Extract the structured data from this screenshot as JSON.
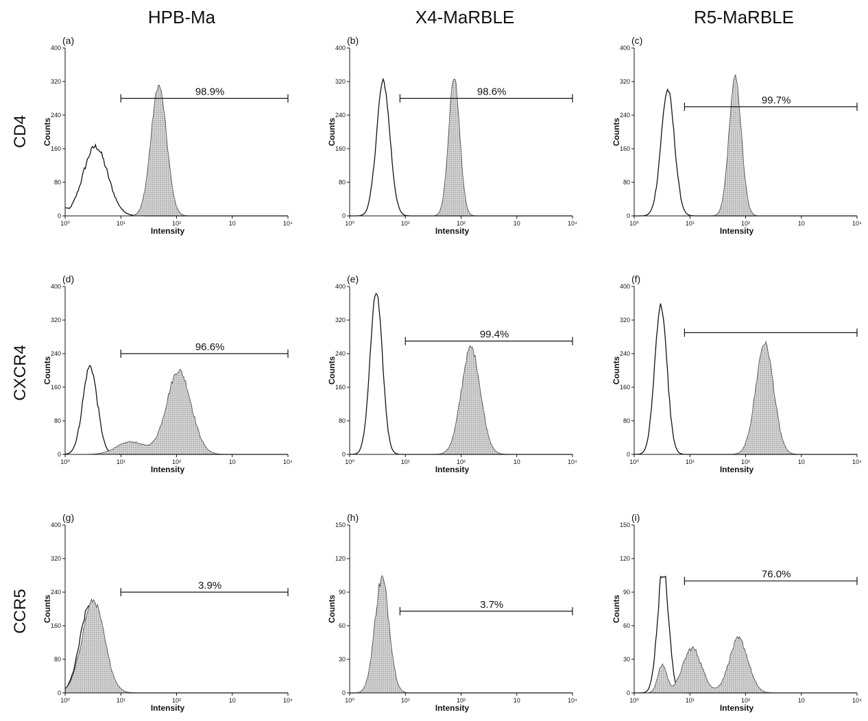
{
  "column_headers": [
    "HPB-Ma",
    "X4-MaRBLE",
    "R5-MaRBLE"
  ],
  "row_headers": [
    "CD4",
    "CXCR4",
    "CCR5"
  ],
  "chart_data": [
    {
      "type": "area",
      "panel": "(a)",
      "xlabel": "Intensity",
      "ylabel": "Counts",
      "xscale": "log",
      "xlim": [
        1,
        10000
      ],
      "x_ticks": [
        "10⁰",
        "10¹",
        "10²",
        "10",
        "10⁴"
      ],
      "y_ticks": [
        "0",
        "80",
        "160",
        "240",
        "320",
        "400"
      ],
      "ylim": [
        0,
        400
      ],
      "gate": {
        "from": 10,
        "to": 10000,
        "label": "98.9%",
        "y": 280
      },
      "series": [
        {
          "style": "outline",
          "peaks": [
            {
              "center": 3.5,
              "height": 165,
              "width": 0.22
            }
          ],
          "floor": 20
        },
        {
          "style": "filled",
          "peaks": [
            {
              "center": 48,
              "height": 310,
              "width": 0.14
            }
          ],
          "floor": 0
        }
      ]
    },
    {
      "type": "area",
      "panel": "(b)",
      "xlabel": "Intensity",
      "ylabel": "Counts",
      "xscale": "log",
      "xlim": [
        1,
        10000
      ],
      "x_ticks": [
        "10⁰",
        "10¹",
        "10²",
        "10",
        "10⁴"
      ],
      "y_ticks": [
        "0",
        "80",
        "160",
        "240",
        "320",
        "400"
      ],
      "ylim": [
        0,
        400
      ],
      "gate": {
        "from": 8,
        "to": 10000,
        "label": "98.6%",
        "y": 280
      },
      "series": [
        {
          "style": "outline",
          "peaks": [
            {
              "center": 4,
              "height": 320,
              "width": 0.12
            }
          ],
          "floor": 0
        },
        {
          "style": "filled",
          "peaks": [
            {
              "center": 75,
              "height": 330,
              "width": 0.1
            }
          ],
          "floor": 0
        }
      ]
    },
    {
      "type": "area",
      "panel": "(c)",
      "xlabel": "Intensity",
      "ylabel": "Counts",
      "xscale": "log",
      "xlim": [
        1,
        10000
      ],
      "x_ticks": [
        "10⁰",
        "10¹",
        "10²",
        "10",
        "10⁴"
      ],
      "y_ticks": [
        "0",
        "80",
        "160",
        "240",
        "320",
        "400"
      ],
      "ylim": [
        0,
        400
      ],
      "gate": {
        "from": 8,
        "to": 10000,
        "label": "99.7%",
        "y": 260
      },
      "series": [
        {
          "style": "outline",
          "peaks": [
            {
              "center": 4,
              "height": 300,
              "width": 0.12
            }
          ],
          "floor": 0
        },
        {
          "style": "filled",
          "peaks": [
            {
              "center": 65,
              "height": 330,
              "width": 0.11
            }
          ],
          "floor": 0
        }
      ]
    },
    {
      "type": "area",
      "panel": "(d)",
      "xlabel": "Intensity",
      "ylabel": "Counts",
      "xscale": "log",
      "xlim": [
        1,
        10000
      ],
      "x_ticks": [
        "10⁰",
        "10¹",
        "10²",
        "10",
        "10⁴"
      ],
      "y_ticks": [
        "0",
        "80",
        "160",
        "240",
        "320",
        "400"
      ],
      "ylim": [
        0,
        400
      ],
      "gate": {
        "from": 10,
        "to": 10000,
        "label": "96.6%",
        "y": 240
      },
      "series": [
        {
          "style": "outline",
          "peaks": [
            {
              "center": 2.8,
              "height": 210,
              "width": 0.13
            }
          ],
          "floor": 0
        },
        {
          "style": "filled",
          "peaks": [
            {
              "center": 110,
              "height": 200,
              "width": 0.22
            },
            {
              "center": 15,
              "height": 30,
              "width": 0.25
            }
          ],
          "floor": 0
        }
      ]
    },
    {
      "type": "area",
      "panel": "(e)",
      "xlabel": "Intensity",
      "ylabel": "Counts",
      "xscale": "log",
      "xlim": [
        1,
        10000
      ],
      "x_ticks": [
        "10⁰",
        "10¹",
        "10²",
        "10",
        "10⁴"
      ],
      "y_ticks": [
        "0",
        "80",
        "160",
        "240",
        "320",
        "400"
      ],
      "ylim": [
        0,
        400
      ],
      "gate": {
        "from": 10,
        "to": 10000,
        "label": "99.4%",
        "y": 270
      },
      "series": [
        {
          "style": "outline",
          "peaks": [
            {
              "center": 3,
              "height": 385,
              "width": 0.11
            }
          ],
          "floor": 0
        },
        {
          "style": "filled",
          "peaks": [
            {
              "center": 150,
              "height": 255,
              "width": 0.17
            }
          ],
          "floor": 0
        }
      ]
    },
    {
      "type": "area",
      "panel": "(f)",
      "xlabel": "Intensity",
      "ylabel": "Counts",
      "xscale": "log",
      "xlim": [
        1,
        10000
      ],
      "x_ticks": [
        "10⁰",
        "10¹",
        "10²",
        "10",
        "10⁴"
      ],
      "y_ticks": [
        "0",
        "80",
        "160",
        "240",
        "320",
        "400"
      ],
      "ylim": [
        0,
        400
      ],
      "gate": {
        "from": 8,
        "to": 10000,
        "label": "",
        "y": 290
      },
      "series": [
        {
          "style": "outline",
          "peaks": [
            {
              "center": 3,
              "height": 355,
              "width": 0.11
            }
          ],
          "floor": 0
        },
        {
          "style": "filled",
          "peaks": [
            {
              "center": 220,
              "height": 265,
              "width": 0.16
            }
          ],
          "floor": 0
        }
      ]
    },
    {
      "type": "area",
      "panel": "(g)",
      "xlabel": "Intensity",
      "ylabel": "Counts",
      "xscale": "log",
      "xlim": [
        1,
        10000
      ],
      "x_ticks": [
        "10⁰",
        "10¹",
        "10²",
        "10",
        "10⁴"
      ],
      "y_ticks": [
        "0",
        "80",
        "160",
        "240",
        "320",
        "400"
      ],
      "ylim": [
        0,
        400
      ],
      "gate": {
        "from": 10,
        "to": 10000,
        "label": "3.9%",
        "y": 240
      },
      "series": [
        {
          "style": "outline",
          "peaks": [
            {
              "center": 2.8,
              "height": 210,
              "width": 0.18
            }
          ],
          "floor": 0
        },
        {
          "style": "filled",
          "peaks": [
            {
              "center": 3.2,
              "height": 220,
              "width": 0.2
            }
          ],
          "floor": 0
        }
      ]
    },
    {
      "type": "area",
      "panel": "(h)",
      "xlabel": "Intensity",
      "ylabel": "Counts",
      "xscale": "log",
      "xlim": [
        1,
        10000
      ],
      "x_ticks": [
        "10⁰",
        "10¹",
        "10²",
        "10",
        "10⁴"
      ],
      "y_ticks": [
        "0",
        "30",
        "60",
        "90",
        "120",
        "150"
      ],
      "ylim": [
        0,
        150
      ],
      "gate": {
        "from": 8,
        "to": 10000,
        "label": "3.7%",
        "y": 73
      },
      "series": [
        {
          "style": "outline",
          "peaks": [
            {
              "center": 3.8,
              "height": 100,
              "width": 0.12
            }
          ],
          "floor": 0
        },
        {
          "style": "filled",
          "peaks": [
            {
              "center": 3.8,
              "height": 102,
              "width": 0.13
            }
          ],
          "floor": 0
        }
      ]
    },
    {
      "type": "area",
      "panel": "(i)",
      "xlabel": "Intensity",
      "ylabel": "Counts",
      "xscale": "log",
      "xlim": [
        1,
        10000
      ],
      "x_ticks": [
        "10⁰",
        "10¹",
        "10²",
        "10",
        "10⁴"
      ],
      "y_ticks": [
        "0",
        "30",
        "60",
        "90",
        "120",
        "150"
      ],
      "ylim": [
        0,
        150
      ],
      "gate": {
        "from": 8,
        "to": 10000,
        "label": "76.0%",
        "y": 100
      },
      "series": [
        {
          "style": "outline",
          "peaks": [
            {
              "center": 3.3,
              "height": 110,
              "width": 0.1
            }
          ],
          "floor": 0
        },
        {
          "style": "filled",
          "peaks": [
            {
              "center": 11,
              "height": 40,
              "width": 0.17
            },
            {
              "center": 75,
              "height": 48,
              "width": 0.17
            },
            {
              "center": 3.2,
              "height": 25,
              "width": 0.08
            }
          ],
          "floor": 0
        }
      ]
    }
  ]
}
